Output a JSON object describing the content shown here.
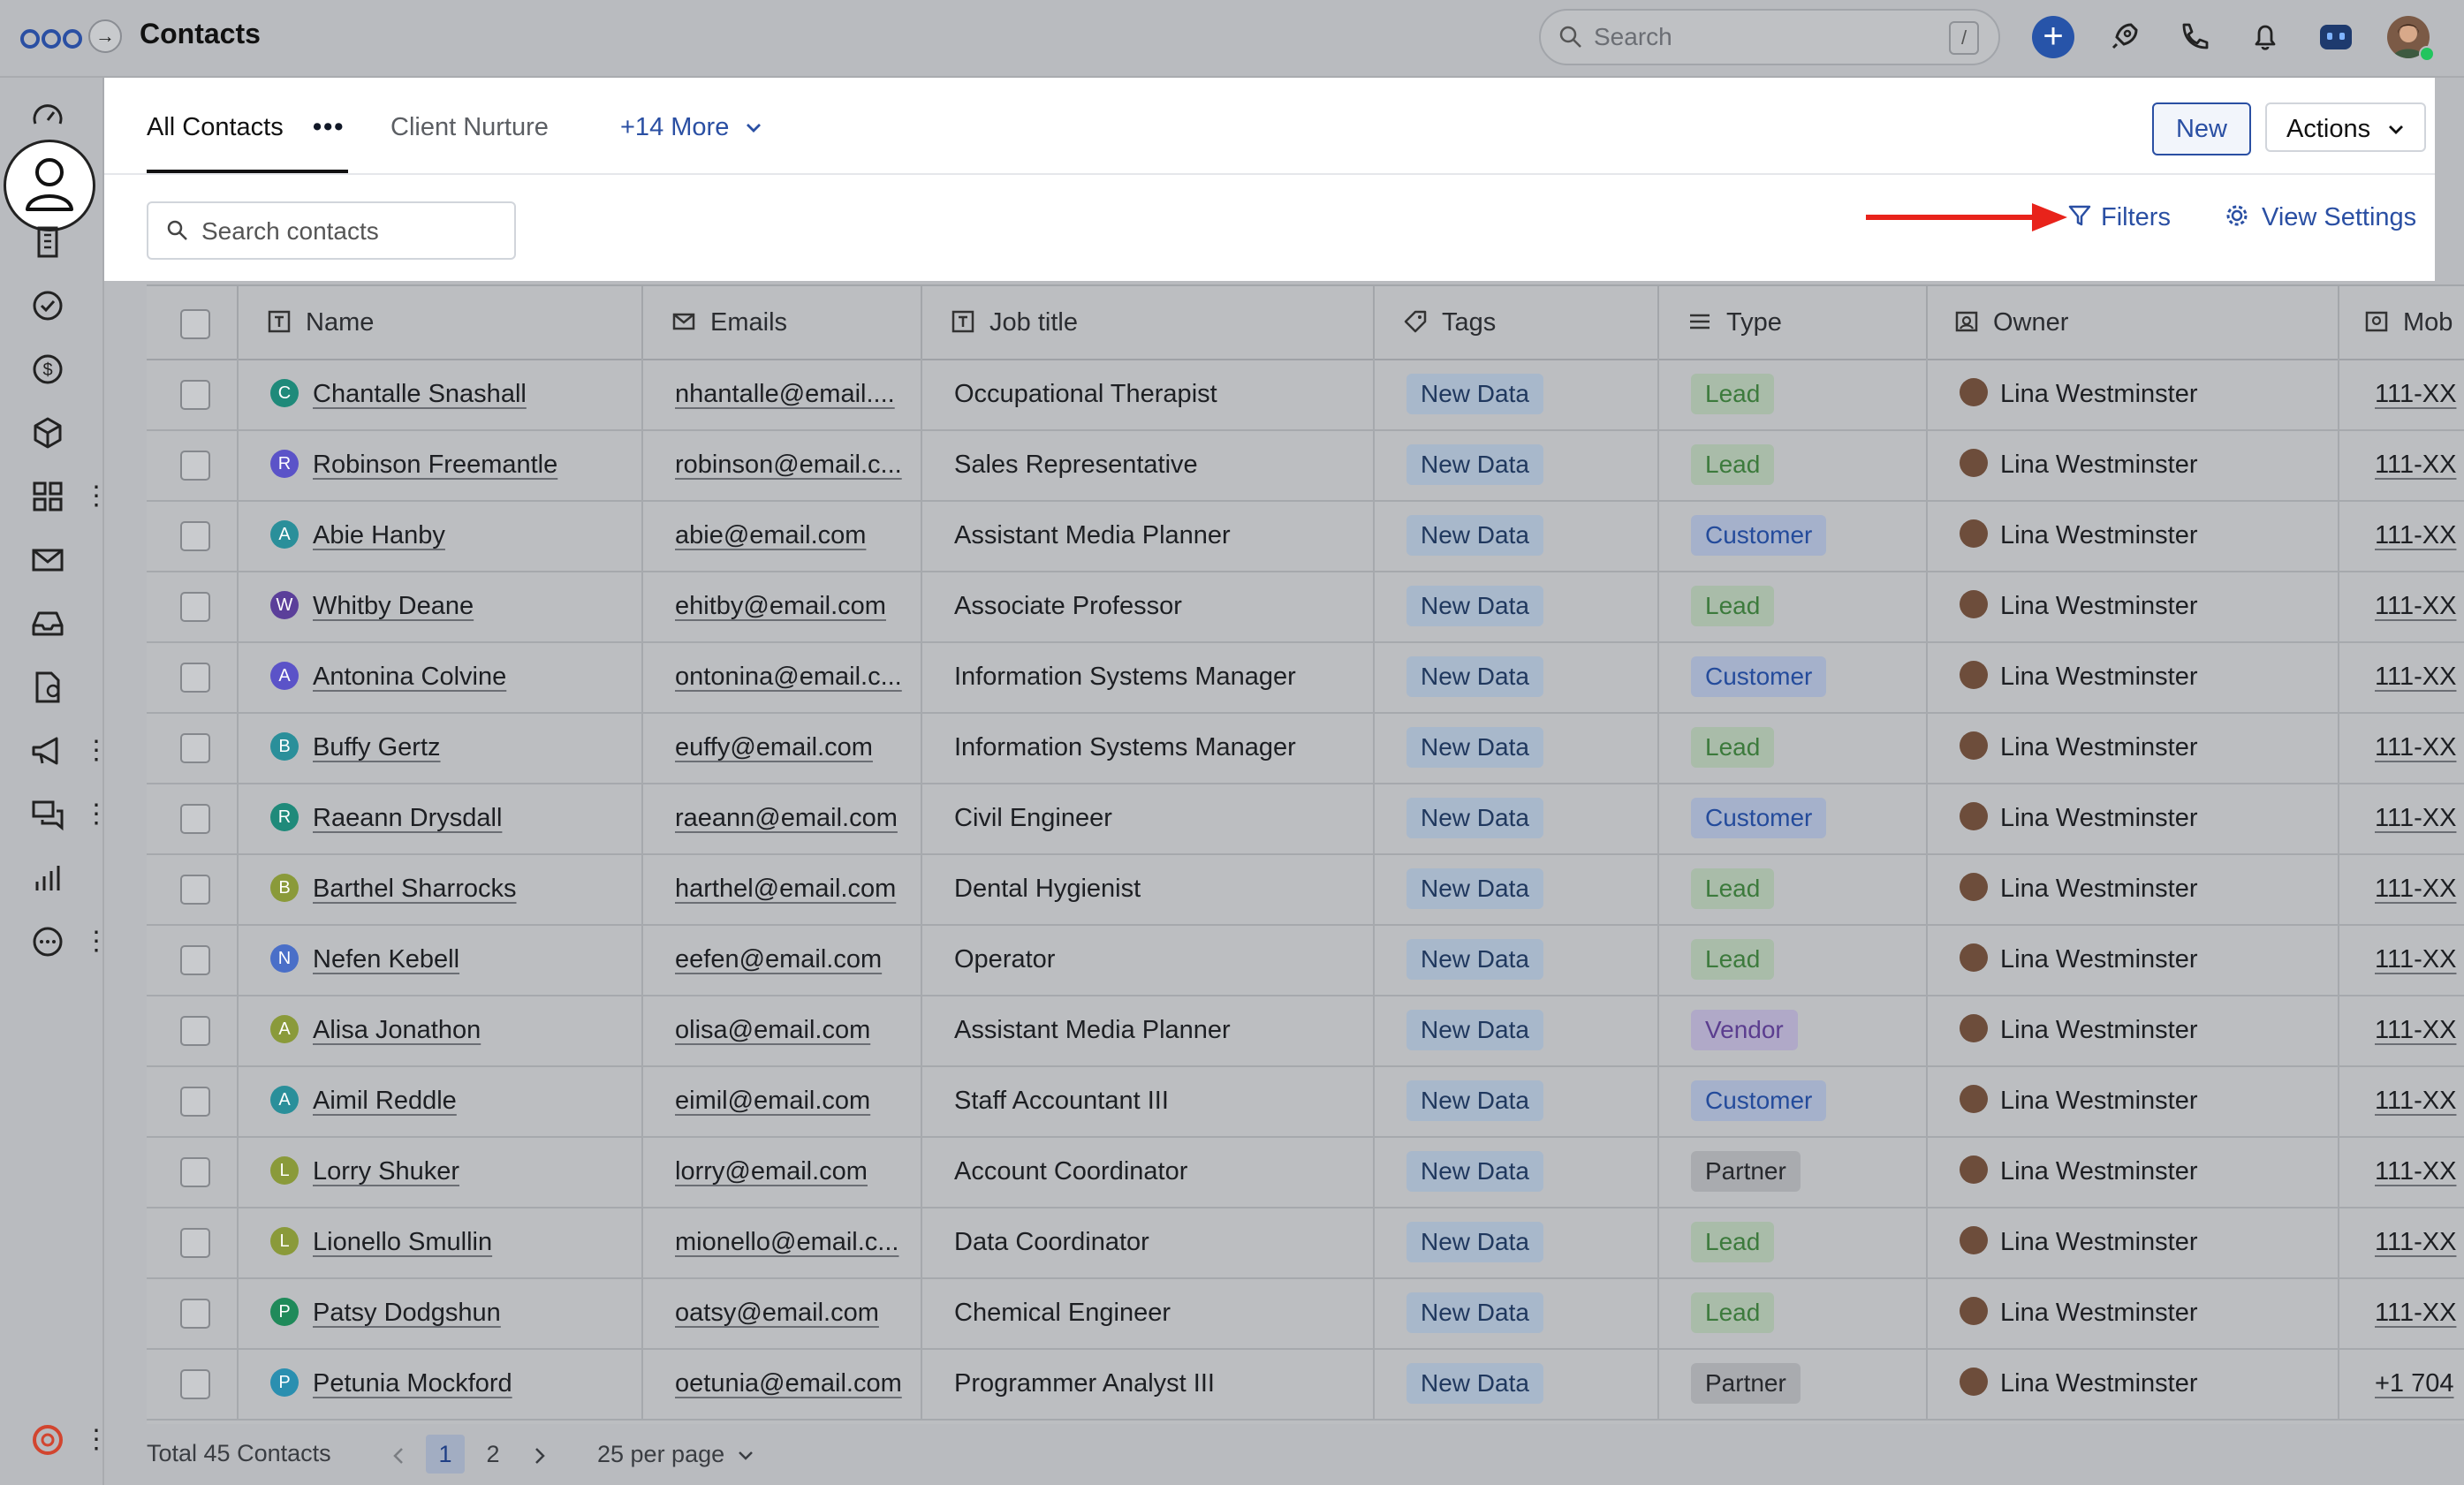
{
  "app": {
    "title": "Contacts"
  },
  "topbar": {
    "search_placeholder": "Search",
    "search_shortcut": "/",
    "plus_label": "+"
  },
  "tabs": [
    {
      "label": "All Contacts",
      "active": true
    },
    {
      "label": "Client Nurture",
      "active": false
    },
    {
      "label": "+14 More",
      "active": false
    }
  ],
  "tab_menu_label": "•••",
  "toolbar": {
    "new_label": "New",
    "actions_label": "Actions",
    "search_placeholder": "Search contacts",
    "filters_label": "Filters",
    "view_settings_label": "View Settings"
  },
  "columns": [
    "Name",
    "Emails",
    "Job title",
    "Tags",
    "Type",
    "Owner",
    "Mob"
  ],
  "rows": [
    {
      "initial": "C",
      "color": "#1f8a7a",
      "name": "Chantalle Snashall",
      "email": "nhantalle@email....",
      "job": "Occupational Therapist",
      "tag": "New Data",
      "type": "Lead",
      "owner": "Lina Westminster",
      "mobile": "111-XX"
    },
    {
      "initial": "R",
      "color": "#5b53c8",
      "name": "Robinson Freemantle",
      "email": "robinson@email.c...",
      "job": "Sales Representative",
      "tag": "New Data",
      "type": "Lead",
      "owner": "Lina Westminster",
      "mobile": "111-XX"
    },
    {
      "initial": "A",
      "color": "#2a8f9a",
      "name": "Abie Hanby",
      "email": "abie@email.com",
      "job": "Assistant Media Planner",
      "tag": "New Data",
      "type": "Customer",
      "owner": "Lina Westminster",
      "mobile": "111-XX"
    },
    {
      "initial": "W",
      "color": "#5b3f9a",
      "name": "Whitby Deane",
      "email": "ehitby@email.com",
      "job": "Associate Professor",
      "tag": "New Data",
      "type": "Lead",
      "owner": "Lina Westminster",
      "mobile": "111-XX"
    },
    {
      "initial": "A",
      "color": "#5b53c8",
      "name": "Antonina Colvine",
      "email": "ontonina@email.c...",
      "job": "Information Systems Manager",
      "tag": "New Data",
      "type": "Customer",
      "owner": "Lina Westminster",
      "mobile": "111-XX"
    },
    {
      "initial": "B",
      "color": "#2a8f9a",
      "name": "Buffy Gertz",
      "email": "euffy@email.com",
      "job": "Information Systems Manager",
      "tag": "New Data",
      "type": "Lead",
      "owner": "Lina Westminster",
      "mobile": "111-XX"
    },
    {
      "initial": "R",
      "color": "#1f8a7a",
      "name": "Raeann Drysdall",
      "email": "raeann@email.com",
      "job": "Civil Engineer",
      "tag": "New Data",
      "type": "Customer",
      "owner": "Lina Westminster",
      "mobile": "111-XX"
    },
    {
      "initial": "B",
      "color": "#8a9a3a",
      "name": "Barthel Sharrocks",
      "email": "harthel@email.com",
      "job": "Dental Hygienist",
      "tag": "New Data",
      "type": "Lead",
      "owner": "Lina Westminster",
      "mobile": "111-XX"
    },
    {
      "initial": "N",
      "color": "#4a6fc8",
      "name": "Nefen Kebell",
      "email": "eefen@email.com",
      "job": "Operator",
      "tag": "New Data",
      "type": "Lead",
      "owner": "Lina Westminster",
      "mobile": "111-XX"
    },
    {
      "initial": "A",
      "color": "#8a9a3a",
      "name": "Alisa Jonathon",
      "email": "olisa@email.com",
      "job": "Assistant Media Planner",
      "tag": "New Data",
      "type": "Vendor",
      "owner": "Lina Westminster",
      "mobile": "111-XX"
    },
    {
      "initial": "A",
      "color": "#2a8f9a",
      "name": "Aimil Reddle",
      "email": "eimil@email.com",
      "job": "Staff Accountant III",
      "tag": "New Data",
      "type": "Customer",
      "owner": "Lina Westminster",
      "mobile": "111-XX"
    },
    {
      "initial": "L",
      "color": "#8a9a3a",
      "name": "Lorry Shuker",
      "email": "lorry@email.com",
      "job": "Account Coordinator",
      "tag": "New Data",
      "type": "Partner",
      "owner": "Lina Westminster",
      "mobile": "111-XX"
    },
    {
      "initial": "L",
      "color": "#8a9a3a",
      "name": "Lionello Smullin",
      "email": "mionello@email.c...",
      "job": "Data Coordinator",
      "tag": "New Data",
      "type": "Lead",
      "owner": "Lina Westminster",
      "mobile": "111-XX"
    },
    {
      "initial": "P",
      "color": "#1f8a5a",
      "name": "Patsy Dodgshun",
      "email": "oatsy@email.com",
      "job": "Chemical Engineer",
      "tag": "New Data",
      "type": "Lead",
      "owner": "Lina Westminster",
      "mobile": "111-XX"
    },
    {
      "initial": "P",
      "color": "#2a8fb0",
      "name": "Petunia Mockford",
      "email": "oetunia@email.com",
      "job": "Programmer Analyst III",
      "tag": "New Data",
      "type": "Partner",
      "owner": "Lina Westminster",
      "mobile": "+1 704"
    }
  ],
  "footer": {
    "total": "Total 45 Contacts",
    "pages": [
      "1",
      "2"
    ],
    "current_page": "1",
    "per_page": "25 per page"
  },
  "colors": {
    "accent": "#2a4fa3",
    "annotation_arrow": "#e8231b"
  },
  "icons": {
    "sidebar": [
      "dashboard-icon",
      "contacts-icon",
      "companies-icon",
      "tasks-icon",
      "deals-icon",
      "products-icon",
      "apps-icon",
      "mail-icon",
      "inbox-icon",
      "documents-icon",
      "campaigns-icon",
      "conversations-icon",
      "reports-icon",
      "more-icon",
      "help-icon"
    ]
  }
}
